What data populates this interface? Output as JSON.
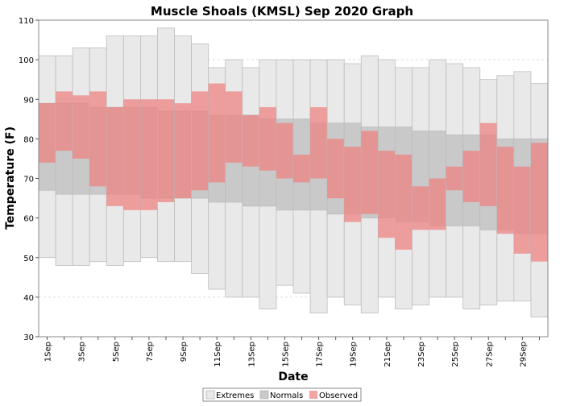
{
  "colors": {
    "extremes": "#e9e9e9",
    "extremes_border": "#bdbdbd",
    "normals": "#c9c9c9",
    "observed": "#f08080",
    "observed_opacity": 0.72,
    "grid": "#dddddd"
  },
  "chart_data": {
    "type": "bar",
    "title": "Muscle Shoals (KMSL) Sep 2020 Graph",
    "xlabel": "Date",
    "ylabel": "Temperature (F)",
    "ylim": [
      30,
      110
    ],
    "yticks": [
      30,
      40,
      50,
      60,
      70,
      80,
      90,
      100,
      110
    ],
    "grid": true,
    "legend_position": "bottom-center",
    "legend": [
      "Extremes",
      "Normals",
      "Observed"
    ],
    "categories": [
      "1Sep",
      "2Sep",
      "3Sep",
      "4Sep",
      "5Sep",
      "6Sep",
      "7Sep",
      "8Sep",
      "9Sep",
      "10Sep",
      "11Sep",
      "12Sep",
      "13Sep",
      "14Sep",
      "15Sep",
      "16Sep",
      "17Sep",
      "18Sep",
      "19Sep",
      "20Sep",
      "21Sep",
      "22Sep",
      "23Sep",
      "24Sep",
      "25Sep",
      "26Sep",
      "27Sep",
      "28Sep",
      "29Sep",
      "30Sep"
    ],
    "xtick_labels": [
      "1Sep",
      "3Sep",
      "5Sep",
      "7Sep",
      "9Sep",
      "11Sep",
      "13Sep",
      "15Sep",
      "17Sep",
      "19Sep",
      "21Sep",
      "23Sep",
      "25Sep",
      "27Sep",
      "29Sep"
    ],
    "series": [
      {
        "name": "Extremes",
        "high": [
          101,
          101,
          103,
          103,
          106,
          106,
          106,
          108,
          106,
          104,
          98,
          100,
          98,
          100,
          100,
          100,
          100,
          100,
          99,
          101,
          100,
          98,
          98,
          100,
          99,
          98,
          95,
          96,
          97,
          94
        ],
        "low": [
          50,
          48,
          48,
          49,
          48,
          49,
          50,
          49,
          49,
          46,
          42,
          40,
          40,
          37,
          43,
          41,
          36,
          40,
          38,
          36,
          40,
          37,
          38,
          40,
          40,
          37,
          38,
          39,
          39,
          35
        ]
      },
      {
        "name": "Normals",
        "high": [
          89,
          89,
          89,
          88,
          88,
          88,
          88,
          87,
          87,
          87,
          86,
          86,
          86,
          85,
          85,
          85,
          84,
          84,
          84,
          83,
          83,
          83,
          82,
          82,
          81,
          81,
          81,
          80,
          80,
          80
        ],
        "low": [
          67,
          66,
          66,
          66,
          66,
          66,
          65,
          65,
          65,
          65,
          64,
          64,
          63,
          63,
          62,
          62,
          62,
          61,
          61,
          60,
          60,
          59,
          59,
          58,
          58,
          58,
          57,
          57,
          56,
          56
        ]
      },
      {
        "name": "Observed",
        "high": [
          89,
          92,
          91,
          92,
          88,
          90,
          90,
          90,
          89,
          92,
          94,
          92,
          86,
          88,
          84,
          76,
          88,
          80,
          78,
          82,
          77,
          76,
          68,
          70,
          73,
          77,
          84,
          78,
          73,
          79
        ],
        "low": [
          74,
          77,
          75,
          68,
          63,
          62,
          62,
          64,
          65,
          67,
          69,
          74,
          73,
          72,
          70,
          69,
          70,
          65,
          59,
          61,
          55,
          52,
          57,
          57,
          67,
          64,
          63,
          56,
          51,
          49
        ]
      }
    ]
  }
}
